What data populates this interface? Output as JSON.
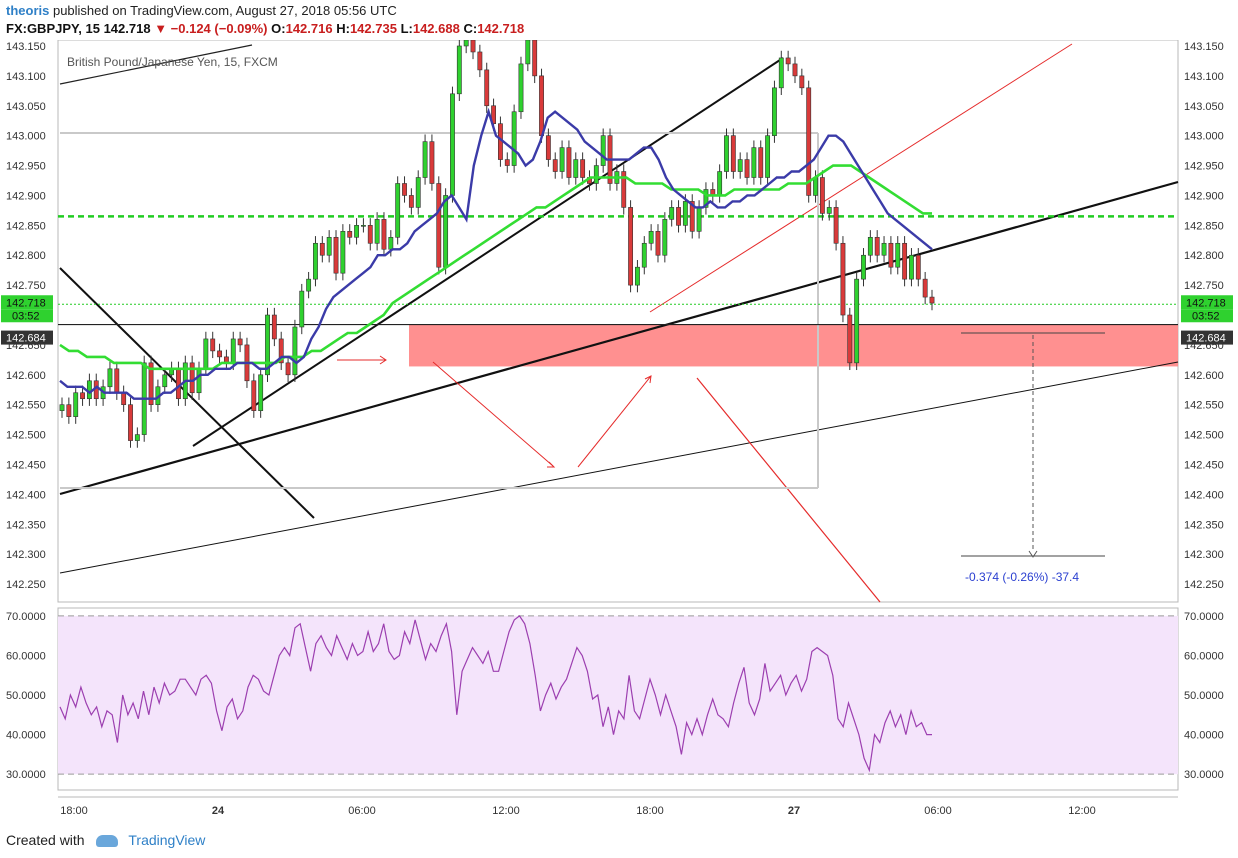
{
  "header": {
    "author": "theoris",
    "published": "published on TradingView.com, August 27, 2018 05:56 UTC",
    "symbol": "FX:GBPJPY, 15",
    "last": "142.718",
    "change": "▼ −0.124 (−0.09%)",
    "o_label": "O:",
    "o": "142.716",
    "h_label": "H:",
    "h": "142.735",
    "l_label": "L:",
    "l": "142.688",
    "c_label": "C:",
    "c": "142.718"
  },
  "chart_data": {
    "type": "candlestick",
    "title": "British Pound/Japanese Yen, 15, FXCM",
    "ylim": [
      142.22,
      143.16
    ],
    "y_ticks": [
      "142.250",
      "142.300",
      "142.350",
      "142.400",
      "142.450",
      "142.500",
      "142.550",
      "142.600",
      "142.650",
      "142.700",
      "142.750",
      "142.800",
      "142.850",
      "142.900",
      "142.950",
      "143.000",
      "143.050",
      "143.100",
      "143.150"
    ],
    "x_ticks": [
      "18:00",
      "24",
      "06:00",
      "12:00",
      "18:00",
      "27",
      "06:00",
      "12:00"
    ],
    "price_label": "142.718",
    "countdown_label": "03:52",
    "level_label": "142.684",
    "level_price": 142.684,
    "green_level": 142.865,
    "zone": {
      "top": 142.684,
      "bottom": 142.614
    },
    "measure_text": "-0.374 (-0.26%) -37.4",
    "measure": {
      "from": 142.684,
      "to": 142.31
    },
    "closes": [
      142.55,
      142.53,
      142.57,
      142.56,
      142.59,
      142.56,
      142.58,
      142.61,
      142.57,
      142.55,
      142.49,
      142.5,
      142.62,
      142.55,
      142.58,
      142.6,
      142.61,
      142.56,
      142.62,
      142.57,
      142.61,
      142.66,
      142.64,
      142.63,
      142.62,
      142.66,
      142.65,
      142.59,
      142.54,
      142.6,
      142.7,
      142.66,
      142.62,
      142.6,
      142.68,
      142.74,
      142.76,
      142.82,
      142.8,
      142.83,
      142.77,
      142.84,
      142.83,
      142.85,
      142.85,
      142.82,
      142.86,
      142.81,
      142.83,
      142.92,
      142.9,
      142.88,
      142.93,
      142.99,
      142.92,
      142.78,
      142.9,
      143.07,
      143.15,
      143.16,
      143.14,
      143.11,
      143.05,
      143.02,
      142.96,
      142.95,
      143.04,
      143.12,
      143.16,
      143.1,
      143.0,
      142.96,
      142.94,
      142.98,
      142.93,
      142.96,
      142.93,
      142.92,
      142.95,
      143.0,
      142.92,
      142.94,
      142.88,
      142.75,
      142.78,
      142.82,
      142.84,
      142.8,
      142.86,
      142.88,
      142.85,
      142.89,
      142.84,
      142.88,
      142.91,
      142.9,
      142.94,
      143.0,
      142.94,
      142.96,
      142.93,
      142.98,
      142.93,
      143.0,
      143.08,
      143.13,
      143.12,
      143.1,
      143.08,
      142.9,
      142.93,
      142.87,
      142.88,
      142.82,
      142.7,
      142.62,
      142.76,
      142.8,
      142.83,
      142.8,
      142.82,
      142.78,
      142.82,
      142.76,
      142.8,
      142.76,
      142.73,
      142.72
    ],
    "ema_fast": [
      142.59,
      142.58,
      142.58,
      142.58,
      142.57,
      142.58,
      142.57,
      142.57,
      142.57,
      142.57,
      142.56,
      142.56,
      142.56,
      142.56,
      142.57,
      142.57,
      142.58,
      142.59,
      142.59,
      142.6,
      142.6,
      142.61,
      142.61,
      142.61,
      142.62,
      142.62,
      142.62,
      142.61,
      142.61,
      142.62,
      142.63,
      142.63,
      142.62,
      142.63,
      142.66,
      142.68,
      142.71,
      142.73,
      142.74,
      142.75,
      142.76,
      142.77,
      142.78,
      142.8,
      142.8,
      142.81,
      142.81,
      142.82,
      142.84,
      142.85,
      142.86,
      142.87,
      142.89,
      142.9,
      142.88,
      142.86,
      142.95,
      143.0,
      143.04,
      143.0,
      142.99,
      142.98,
      142.97,
      142.95,
      142.96,
      142.99,
      143.03,
      143.04,
      143.03,
      143.02,
      143.01,
      142.99,
      142.98,
      142.97,
      142.96,
      142.96,
      142.96,
      142.96,
      142.97,
      142.98,
      142.98,
      142.96,
      142.93,
      142.91,
      142.9,
      142.89,
      142.88,
      142.88,
      142.89,
      142.88,
      142.88,
      142.89,
      142.89,
      142.9,
      142.9,
      142.91,
      142.92,
      142.93,
      142.93,
      142.94,
      142.94,
      142.95,
      142.96,
      142.98,
      143.0,
      143.0,
      142.99,
      142.97,
      142.95,
      142.93,
      142.91,
      142.89,
      142.87,
      142.86,
      142.85,
      142.84,
      142.83,
      142.82,
      142.81
    ],
    "ema_fast_start": 0,
    "ema_slow": [
      142.65,
      142.64,
      142.64,
      142.63,
      142.63,
      142.63,
      142.62,
      142.62,
      142.62,
      142.62,
      142.61,
      142.61,
      142.61,
      142.61,
      142.61,
      142.61,
      142.61,
      142.61,
      142.62,
      142.62,
      142.62,
      142.62,
      142.62,
      142.62,
      142.62,
      142.63,
      142.63,
      142.63,
      142.64,
      142.64,
      142.65,
      142.66,
      142.67,
      142.67,
      142.68,
      142.69,
      142.7,
      142.72,
      142.73,
      142.74,
      142.75,
      142.76,
      142.77,
      142.78,
      142.79,
      142.8,
      142.81,
      142.82,
      142.83,
      142.84,
      142.85,
      142.86,
      142.87,
      142.88,
      142.88,
      142.89,
      142.9,
      142.91,
      142.92,
      142.93,
      142.93,
      142.93,
      142.93,
      142.93,
      142.92,
      142.92,
      142.92,
      142.92,
      142.91,
      142.91,
      142.91,
      142.91,
      142.9,
      142.9,
      142.9,
      142.91,
      142.91,
      142.91,
      142.91,
      142.91,
      142.91,
      142.92,
      142.92,
      142.92,
      142.93,
      142.94,
      142.95,
      142.95,
      142.95,
      142.94,
      142.93,
      142.92,
      142.91,
      142.9,
      142.89,
      142.88,
      142.87,
      142.87
    ],
    "ema_slow_start": 0,
    "rsi": {
      "ylim": [
        26,
        72
      ],
      "ticks": [
        "70.0000",
        "60.0000",
        "50.0000",
        "40.0000",
        "30.0000"
      ],
      "values": [
        47,
        44,
        50,
        47,
        52,
        48,
        45,
        47,
        42,
        46,
        45,
        38,
        50,
        45,
        48,
        44,
        51,
        45,
        52,
        48,
        53,
        50,
        51,
        54,
        54,
        52,
        50,
        54,
        55,
        53,
        46,
        41,
        47,
        49,
        44,
        46,
        52,
        55,
        54,
        51,
        50,
        55,
        60,
        62,
        60,
        67,
        68,
        62,
        56,
        63,
        65,
        62,
        60,
        65,
        62,
        59,
        63,
        60,
        61,
        66,
        61,
        63,
        68,
        61,
        59,
        60,
        66,
        63,
        69,
        64,
        59,
        63,
        61,
        65,
        68,
        61,
        45,
        56,
        59,
        62,
        60,
        58,
        61,
        56,
        56,
        61,
        66,
        69,
        70,
        68,
        63,
        55,
        46,
        50,
        53,
        49,
        52,
        54,
        58,
        62,
        60,
        56,
        49,
        50,
        42,
        47,
        40,
        46,
        44,
        55,
        46,
        44,
        49,
        54,
        50,
        45,
        50,
        46,
        42,
        35,
        43,
        40,
        44,
        40,
        45,
        49,
        45,
        44,
        42,
        48,
        53,
        57,
        48,
        45,
        49,
        58,
        51,
        53,
        55,
        50,
        53,
        55,
        51,
        54,
        61,
        62,
        61,
        60,
        55,
        44,
        42,
        48,
        44,
        40,
        34,
        31,
        40,
        38,
        43,
        46,
        42,
        45,
        40,
        46,
        42,
        43,
        40,
        40
      ]
    }
  },
  "footer": {
    "created": "Created with",
    "brand": "TradingView"
  },
  "colors": {
    "up": "#2fd12f",
    "down": "#d93a3a",
    "ema_fast": "#3b3ba8",
    "ema_slow": "#33dd33",
    "zone": "#ff8a8a",
    "rsi_line": "#9c3fb0",
    "rsi_bg": "#f4e4fb",
    "link": "#2f80c7"
  }
}
